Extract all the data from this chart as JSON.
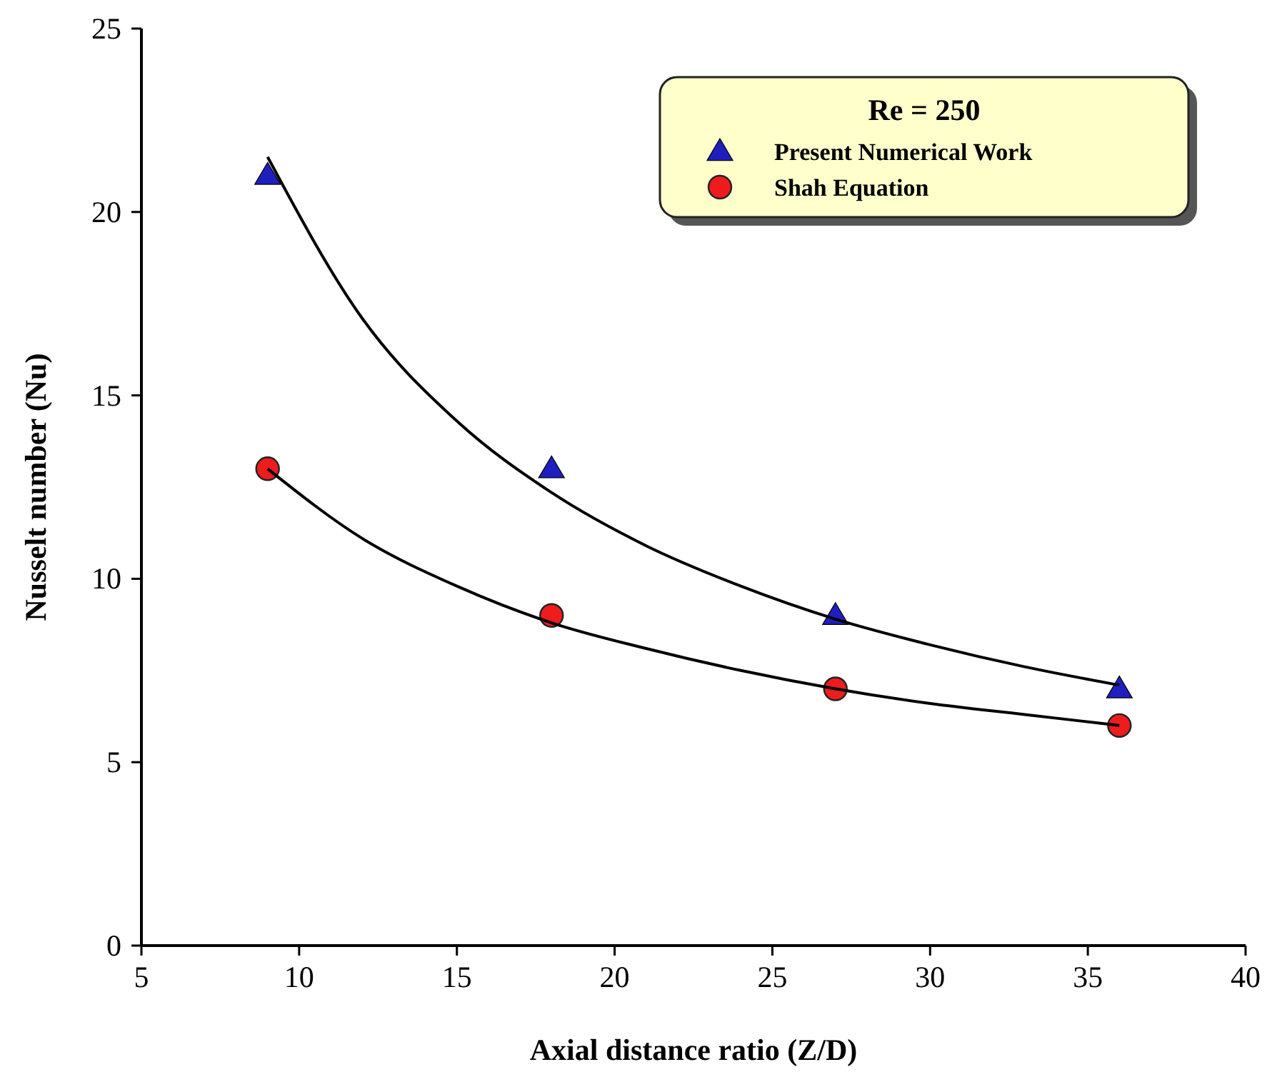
{
  "chart_data": {
    "type": "scatter",
    "xlabel": "Axial distance ratio (Z/D)",
    "ylabel": "Nusselt number (Nu)",
    "legend_title": "Re = 250",
    "xlim": [
      5,
      40
    ],
    "xticks": [
      5,
      10,
      15,
      20,
      25,
      30,
      35,
      40
    ],
    "ylim": [
      0,
      25
    ],
    "yticks": [
      0,
      5,
      10,
      15,
      20,
      25
    ],
    "grid": false,
    "legend": "top right",
    "series": [
      {
        "name": "Present Numerical Work",
        "marker": "triangle",
        "color": "#1f1fbf",
        "x": [
          9,
          18,
          27,
          36
        ],
        "values": [
          21,
          13,
          9,
          7
        ]
      },
      {
        "name": "Shah Equation",
        "marker": "circle",
        "color": "#ee1c1c",
        "x": [
          9,
          18,
          27,
          36
        ],
        "values": [
          13,
          9,
          7,
          6
        ]
      },
      {
        "type": "line",
        "marker": "none",
        "color": "#000000",
        "x": [
          9,
          12,
          15,
          18,
          21,
          24,
          27,
          30,
          33,
          36
        ],
        "values": [
          21.5,
          17.1,
          14.3,
          12.35,
          10.9,
          9.8,
          8.9,
          8.2,
          7.6,
          7.1
        ]
      },
      {
        "type": "line",
        "marker": "none",
        "color": "#000000",
        "x": [
          9,
          12,
          15,
          18,
          21,
          24,
          27,
          30,
          33,
          36
        ],
        "values": [
          13,
          11.1,
          9.8,
          8.8,
          8.1,
          7.5,
          7.0,
          6.6,
          6.3,
          6.0
        ]
      }
    ]
  }
}
